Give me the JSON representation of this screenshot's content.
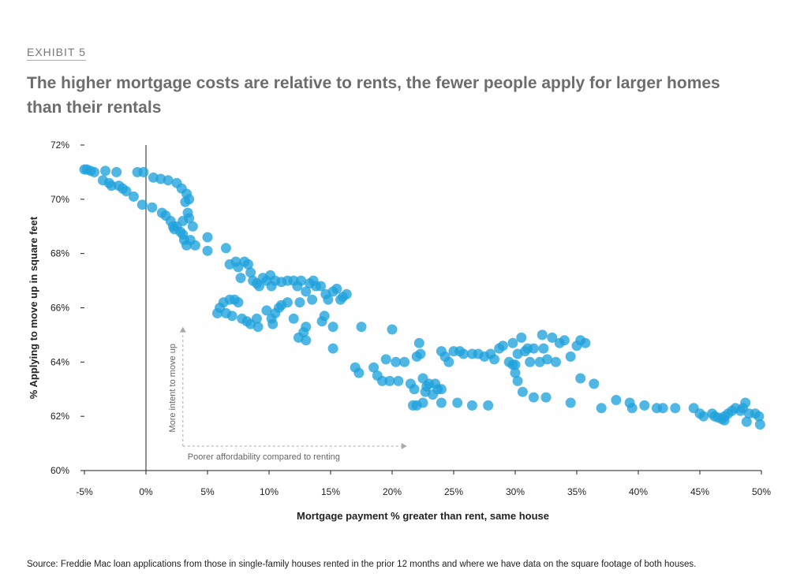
{
  "exhibit_label": "EXHIBIT 5",
  "title": "The higher mortgage costs are relative to rents, the fewer people apply for larger homes than their rentals",
  "source": "Source:  Freddie Mac loan applications from those in single-family houses rented in the prior 12 months and where we have data on the square footage of both houses.",
  "colors": {
    "points": "#1fa2db",
    "annotation": "#aaaaaa"
  },
  "chart_data": {
    "type": "scatter",
    "xlabel": "Mortgage payment % greater than rent, same house",
    "ylabel": "% Applying to move up in square feet",
    "xlim": [
      -5,
      50
    ],
    "ylim": [
      60,
      72
    ],
    "x_ticks": [
      -5,
      0,
      5,
      10,
      15,
      20,
      25,
      30,
      35,
      40,
      45,
      50
    ],
    "x_tick_labels": [
      "-5%",
      "0%",
      "5%",
      "10%",
      "15%",
      "20%",
      "25%",
      "30%",
      "35%",
      "40%",
      "45%",
      "50%"
    ],
    "y_ticks": [
      60,
      62,
      64,
      66,
      68,
      70,
      72
    ],
    "y_tick_labels": [
      "60%",
      "62%",
      "64%",
      "66%",
      "68%",
      "70%",
      "72%"
    ],
    "vertical_reference_line_x": 0,
    "annotations": {
      "vertical_arrow": "More intent to move up",
      "horizontal_arrow": "Poorer affordability compared to renting"
    },
    "points": [
      [
        -5.0,
        71.1
      ],
      [
        -4.8,
        71.1
      ],
      [
        -4.5,
        71.05
      ],
      [
        -4.2,
        71.0
      ],
      [
        -3.3,
        71.05
      ],
      [
        -3.5,
        70.7
      ],
      [
        -3.0,
        70.6
      ],
      [
        -2.8,
        70.5
      ],
      [
        -2.4,
        71.0
      ],
      [
        -2.2,
        70.5
      ],
      [
        -1.9,
        70.4
      ],
      [
        -1.6,
        70.3
      ],
      [
        -1.0,
        70.1
      ],
      [
        -0.7,
        71.0
      ],
      [
        -0.2,
        71.0
      ],
      [
        -0.3,
        69.8
      ],
      [
        0.5,
        69.7
      ],
      [
        0.6,
        70.8
      ],
      [
        1.2,
        70.75
      ],
      [
        1.3,
        69.5
      ],
      [
        1.8,
        70.7
      ],
      [
        1.6,
        69.4
      ],
      [
        2.0,
        69.2
      ],
      [
        2.2,
        69.0
      ],
      [
        2.3,
        68.9
      ],
      [
        2.5,
        70.6
      ],
      [
        2.5,
        69.0
      ],
      [
        2.8,
        68.8
      ],
      [
        2.9,
        70.4
      ],
      [
        3.0,
        69.2
      ],
      [
        3.0,
        68.7
      ],
      [
        3.1,
        68.5
      ],
      [
        3.3,
        70.2
      ],
      [
        3.3,
        68.3
      ],
      [
        3.4,
        69.5
      ],
      [
        3.5,
        70.0
      ],
      [
        3.5,
        69.3
      ],
      [
        3.6,
        68.5
      ],
      [
        3.8,
        69.0
      ],
      [
        4.0,
        68.3
      ],
      [
        3.2,
        69.9
      ],
      [
        5.0,
        68.6
      ],
      [
        5.0,
        68.1
      ],
      [
        6.5,
        68.2
      ],
      [
        6.8,
        67.6
      ],
      [
        7.3,
        67.7
      ],
      [
        7.5,
        67.5
      ],
      [
        7.7,
        67.1
      ],
      [
        8.0,
        67.7
      ],
      [
        8.3,
        67.6
      ],
      [
        8.5,
        67.3
      ],
      [
        8.7,
        67.0
      ],
      [
        9.0,
        66.9
      ],
      [
        9.2,
        66.8
      ],
      [
        9.5,
        67.1
      ],
      [
        9.8,
        67.0
      ],
      [
        10.1,
        67.2
      ],
      [
        10.2,
        66.8
      ],
      [
        10.5,
        67.0
      ],
      [
        11.0,
        66.95
      ],
      [
        11.5,
        67.0
      ],
      [
        12.0,
        67.0
      ],
      [
        12.3,
        66.8
      ],
      [
        12.6,
        67.0
      ],
      [
        13.0,
        66.6
      ],
      [
        13.3,
        66.9
      ],
      [
        13.6,
        67.0
      ],
      [
        13.8,
        66.8
      ],
      [
        14.2,
        66.8
      ],
      [
        14.6,
        66.5
      ],
      [
        15.2,
        66.6
      ],
      [
        15.5,
        66.7
      ],
      [
        15.8,
        66.3
      ],
      [
        16.0,
        66.4
      ],
      [
        16.3,
        66.5
      ],
      [
        14.8,
        66.3
      ],
      [
        13.5,
        66.3
      ],
      [
        12.5,
        66.2
      ],
      [
        11.5,
        66.2
      ],
      [
        11.0,
        66.1
      ],
      [
        10.8,
        66.0
      ],
      [
        10.5,
        65.8
      ],
      [
        10.2,
        65.6
      ],
      [
        9.8,
        65.9
      ],
      [
        9.0,
        65.6
      ],
      [
        8.5,
        65.4
      ],
      [
        7.8,
        65.6
      ],
      [
        7.5,
        66.2
      ],
      [
        7.2,
        66.3
      ],
      [
        6.8,
        66.3
      ],
      [
        6.3,
        66.2
      ],
      [
        6.0,
        66.0
      ],
      [
        5.8,
        65.8
      ],
      [
        6.5,
        65.8
      ],
      [
        7.0,
        65.7
      ],
      [
        8.2,
        65.5
      ],
      [
        9.1,
        65.3
      ],
      [
        10.3,
        65.4
      ],
      [
        12.0,
        65.6
      ],
      [
        13.0,
        65.3
      ],
      [
        12.8,
        65.1
      ],
      [
        12.4,
        64.9
      ],
      [
        13.0,
        64.8
      ],
      [
        14.5,
        65.7
      ],
      [
        15.2,
        65.3
      ],
      [
        14.3,
        65.5
      ],
      [
        15.2,
        64.5
      ],
      [
        17.5,
        65.3
      ],
      [
        20.0,
        65.2
      ],
      [
        17.0,
        63.8
      ],
      [
        17.3,
        63.6
      ],
      [
        18.5,
        63.8
      ],
      [
        18.8,
        63.5
      ],
      [
        19.2,
        63.3
      ],
      [
        19.5,
        64.1
      ],
      [
        19.8,
        63.3
      ],
      [
        20.3,
        64.0
      ],
      [
        20.5,
        63.3
      ],
      [
        21.0,
        64.0
      ],
      [
        21.5,
        63.2
      ],
      [
        21.8,
        63.0
      ],
      [
        22.0,
        64.2
      ],
      [
        22.3,
        64.3
      ],
      [
        22.5,
        63.4
      ],
      [
        22.7,
        62.9
      ],
      [
        23.0,
        63.2
      ],
      [
        23.3,
        62.8
      ],
      [
        23.5,
        63.2
      ],
      [
        23.7,
        63.0
      ],
      [
        24.0,
        62.5
      ],
      [
        22.0,
        62.4
      ],
      [
        21.7,
        62.4
      ],
      [
        22.5,
        62.5
      ],
      [
        24.0,
        63.0
      ],
      [
        22.8,
        63.1
      ],
      [
        22.2,
        64.7
      ],
      [
        24.0,
        64.4
      ],
      [
        24.3,
        64.2
      ],
      [
        24.6,
        64.0
      ],
      [
        25.0,
        64.4
      ],
      [
        25.5,
        64.4
      ],
      [
        25.8,
        64.3
      ],
      [
        26.5,
        64.3
      ],
      [
        27.0,
        64.3
      ],
      [
        27.5,
        64.2
      ],
      [
        28.0,
        64.3
      ],
      [
        28.3,
        64.1
      ],
      [
        28.7,
        64.5
      ],
      [
        29.0,
        64.6
      ],
      [
        29.5,
        64.0
      ],
      [
        29.8,
        64.7
      ],
      [
        30.0,
        63.9
      ],
      [
        30.2,
        64.3
      ],
      [
        30.5,
        64.9
      ],
      [
        30.8,
        64.4
      ],
      [
        31.0,
        64.5
      ],
      [
        31.2,
        64.0
      ],
      [
        31.5,
        64.5
      ],
      [
        32.0,
        64.0
      ],
      [
        32.3,
        64.5
      ],
      [
        32.6,
        64.1
      ],
      [
        33.0,
        64.9
      ],
      [
        33.3,
        64.0
      ],
      [
        33.6,
        64.7
      ],
      [
        34.0,
        64.8
      ],
      [
        34.5,
        64.2
      ],
      [
        35.0,
        64.6
      ],
      [
        35.3,
        64.8
      ],
      [
        35.7,
        64.7
      ],
      [
        32.2,
        65.0
      ],
      [
        29.8,
        63.9
      ],
      [
        30.0,
        63.6
      ],
      [
        30.2,
        63.3
      ],
      [
        30.6,
        62.9
      ],
      [
        31.5,
        62.7
      ],
      [
        32.5,
        62.7
      ],
      [
        34.5,
        62.5
      ],
      [
        35.3,
        63.4
      ],
      [
        36.4,
        63.2
      ],
      [
        25.3,
        62.5
      ],
      [
        26.5,
        62.4
      ],
      [
        27.8,
        62.4
      ],
      [
        37.0,
        62.3
      ],
      [
        38.2,
        62.6
      ],
      [
        39.3,
        62.5
      ],
      [
        39.5,
        62.3
      ],
      [
        40.5,
        62.4
      ],
      [
        41.5,
        62.3
      ],
      [
        42.0,
        62.3
      ],
      [
        43.0,
        62.3
      ],
      [
        44.5,
        62.3
      ],
      [
        45.0,
        62.1
      ],
      [
        45.3,
        62.0
      ],
      [
        46.2,
        62.0
      ],
      [
        46.5,
        61.95
      ],
      [
        46.8,
        61.9
      ],
      [
        47.0,
        62.0
      ],
      [
        47.3,
        62.1
      ],
      [
        47.6,
        62.2
      ],
      [
        47.9,
        62.3
      ],
      [
        48.3,
        62.2
      ],
      [
        48.5,
        62.3
      ],
      [
        48.7,
        62.5
      ],
      [
        49.0,
        62.1
      ],
      [
        49.5,
        62.1
      ],
      [
        49.8,
        62.0
      ],
      [
        48.8,
        61.8
      ],
      [
        49.9,
        61.7
      ],
      [
        46.0,
        62.1
      ],
      [
        47.0,
        61.85
      ]
    ]
  }
}
